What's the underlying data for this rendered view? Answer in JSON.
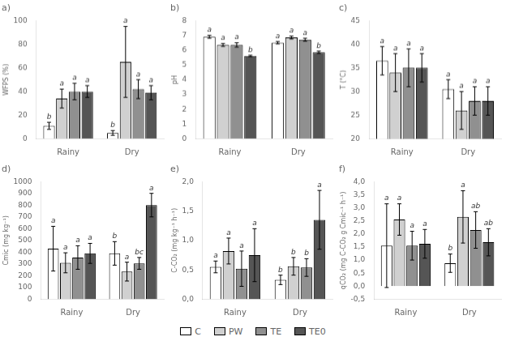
{
  "chart_data": [
    {
      "type": "bar",
      "title": "a)",
      "ylabel": "WFPS (%)",
      "categories": [
        "Rainy",
        "Dry"
      ],
      "series": [
        {
          "name": "C",
          "color": "#ffffff",
          "values": [
            11,
            5
          ],
          "errors": [
            3,
            2
          ],
          "annotations": [
            "b",
            "b"
          ]
        },
        {
          "name": "PW",
          "color": "#d0d0d0",
          "values": [
            34,
            65
          ],
          "errors": [
            8,
            30
          ],
          "annotations": [
            "a",
            "a"
          ]
        },
        {
          "name": "TE",
          "color": "#909090",
          "values": [
            40,
            42
          ],
          "errors": [
            7,
            8
          ],
          "annotations": [
            "a",
            "a"
          ]
        },
        {
          "name": "TE0",
          "color": "#555555",
          "values": [
            40,
            39
          ],
          "errors": [
            5,
            6
          ],
          "annotations": [
            "a",
            "a"
          ]
        }
      ],
      "ylim": [
        0,
        100
      ],
      "yticks": [
        0,
        20,
        40,
        60,
        80,
        100
      ],
      "grid": false,
      "legend": "bottom"
    },
    {
      "type": "bar",
      "title": "b)",
      "ylabel": "pH",
      "categories": [
        "Rainy",
        "Dry"
      ],
      "series": [
        {
          "name": "C",
          "color": "#ffffff",
          "values": [
            6.9,
            6.5
          ],
          "errors": [
            0.1,
            0.08
          ],
          "annotations": [
            "a",
            "a"
          ]
        },
        {
          "name": "PW",
          "color": "#d0d0d0",
          "values": [
            6.35,
            6.85
          ],
          "errors": [
            0.1,
            0.1
          ],
          "annotations": [
            "a",
            "a"
          ]
        },
        {
          "name": "TE",
          "color": "#909090",
          "values": [
            6.35,
            6.7
          ],
          "errors": [
            0.15,
            0.1
          ],
          "annotations": [
            "a",
            "a"
          ]
        },
        {
          "name": "TE0",
          "color": "#555555",
          "values": [
            5.6,
            5.85
          ],
          "errors": [
            0.05,
            0.08
          ],
          "annotations": [
            "b",
            "b"
          ]
        }
      ],
      "ylim": [
        0,
        8
      ],
      "yticks": [
        0,
        1,
        2,
        3,
        4,
        5,
        6,
        7,
        8
      ],
      "grid": false,
      "legend": "bottom"
    },
    {
      "type": "bar",
      "title": "c)",
      "ylabel": "T (°C)",
      "categories": [
        "Rainy",
        "Dry"
      ],
      "series": [
        {
          "name": "C",
          "color": "#ffffff",
          "values": [
            36.5,
            30.5
          ],
          "errors": [
            3,
            2
          ],
          "annotations": [
            "a",
            "a"
          ]
        },
        {
          "name": "PW",
          "color": "#d0d0d0",
          "values": [
            34,
            26
          ],
          "errors": [
            4,
            4
          ],
          "annotations": [
            "a",
            "a"
          ]
        },
        {
          "name": "TE",
          "color": "#909090",
          "values": [
            35,
            28
          ],
          "errors": [
            4,
            3
          ],
          "annotations": [
            "a",
            "a"
          ]
        },
        {
          "name": "TE0",
          "color": "#555555",
          "values": [
            35,
            28
          ],
          "errors": [
            3,
            3
          ],
          "annotations": [
            "a",
            "a"
          ]
        }
      ],
      "ylim": [
        20,
        45
      ],
      "yticks": [
        20,
        25,
        30,
        35,
        40,
        45
      ],
      "grid": false,
      "legend": "bottom"
    },
    {
      "type": "bar",
      "title": "d)",
      "ylabel": "Cmic (mg kg⁻¹)",
      "categories": [
        "Rainy",
        "Dry"
      ],
      "series": [
        {
          "name": "C",
          "color": "#ffffff",
          "values": [
            430,
            390
          ],
          "errors": [
            190,
            100
          ],
          "annotations": [
            "a",
            "b"
          ]
        },
        {
          "name": "PW",
          "color": "#d0d0d0",
          "values": [
            310,
            235
          ],
          "errors": [
            85,
            80
          ],
          "annotations": [
            "a",
            "a"
          ]
        },
        {
          "name": "TE",
          "color": "#909090",
          "values": [
            355,
            305
          ],
          "errors": [
            100,
            50
          ],
          "annotations": [
            "a",
            "bc"
          ]
        },
        {
          "name": "TE0",
          "color": "#555555",
          "values": [
            390,
            800
          ],
          "errors": [
            85,
            100
          ],
          "annotations": [
            "a",
            "a"
          ]
        }
      ],
      "ylim": [
        0,
        1000
      ],
      "yticks": [
        0,
        100,
        200,
        300,
        400,
        500,
        600,
        700,
        800,
        900,
        1000
      ],
      "grid": false,
      "legend": "bottom"
    },
    {
      "type": "bar",
      "title": "e)",
      "ylabel": "C-CO₂ (mg kg⁻¹ h⁻¹)",
      "categories": [
        "Rainy",
        "Dry"
      ],
      "series": [
        {
          "name": "C",
          "color": "#ffffff",
          "values": [
            0.55,
            0.33
          ],
          "errors": [
            0.1,
            0.08
          ],
          "annotations": [
            "a",
            "b"
          ]
        },
        {
          "name": "PW",
          "color": "#d0d0d0",
          "values": [
            0.82,
            0.56
          ],
          "errors": [
            0.22,
            0.15
          ],
          "annotations": [
            "a",
            "b"
          ]
        },
        {
          "name": "TE",
          "color": "#909090",
          "values": [
            0.52,
            0.54
          ],
          "errors": [
            0.3,
            0.15
          ],
          "annotations": [
            "a",
            "b"
          ]
        },
        {
          "name": "TE0",
          "color": "#555555",
          "values": [
            0.75,
            1.35
          ],
          "errors": [
            0.45,
            0.5
          ],
          "annotations": [
            "a",
            "a"
          ]
        }
      ],
      "ylim": [
        0,
        2.0
      ],
      "yticks": [
        {
          "value": 0.0,
          "label": "0,0"
        },
        {
          "value": 0.5,
          "label": "0,5"
        },
        {
          "value": 1.0,
          "label": "1,0"
        },
        {
          "value": 1.5,
          "label": "1,5"
        },
        {
          "value": 2.0,
          "label": "2,0"
        }
      ],
      "grid": false,
      "legend": "bottom"
    },
    {
      "type": "bar",
      "title": "f)",
      "ylabel": "qCO₂ (mg C-CO₂ g Cmic⁻¹ h⁻¹)",
      "categories": [
        "Rainy",
        "Dry"
      ],
      "series": [
        {
          "name": "C",
          "color": "#ffffff",
          "values": [
            1.55,
            0.88
          ],
          "errors": [
            1.6,
            0.35
          ],
          "annotations": [
            "a",
            "b"
          ]
        },
        {
          "name": "PW",
          "color": "#d0d0d0",
          "values": [
            2.55,
            2.65
          ],
          "errors": [
            0.6,
            1.0
          ],
          "annotations": [
            "a",
            "a"
          ]
        },
        {
          "name": "TE",
          "color": "#909090",
          "values": [
            1.55,
            2.15
          ],
          "errors": [
            0.55,
            0.7
          ],
          "annotations": [
            "a",
            "ab"
          ]
        },
        {
          "name": "TE0",
          "color": "#555555",
          "values": [
            1.62,
            1.68
          ],
          "errors": [
            0.55,
            0.52
          ],
          "annotations": [
            "a",
            "ab"
          ]
        }
      ],
      "ylim": [
        -0.5,
        4.0
      ],
      "yticks": [
        {
          "value": -0.5,
          "label": "-0,5"
        },
        {
          "value": 0.0,
          "label": "0,0"
        },
        {
          "value": 0.5,
          "label": "0,5"
        },
        {
          "value": 1.0,
          "label": "1,0"
        },
        {
          "value": 1.5,
          "label": "1,5"
        },
        {
          "value": 2.0,
          "label": "2,0"
        },
        {
          "value": 2.5,
          "label": "2,5"
        },
        {
          "value": 3.0,
          "label": "3,0"
        },
        {
          "value": 3.5,
          "label": "3,5"
        },
        {
          "value": 4.0,
          "label": "4,0"
        }
      ],
      "grid": false,
      "legend": "bottom"
    }
  ]
}
